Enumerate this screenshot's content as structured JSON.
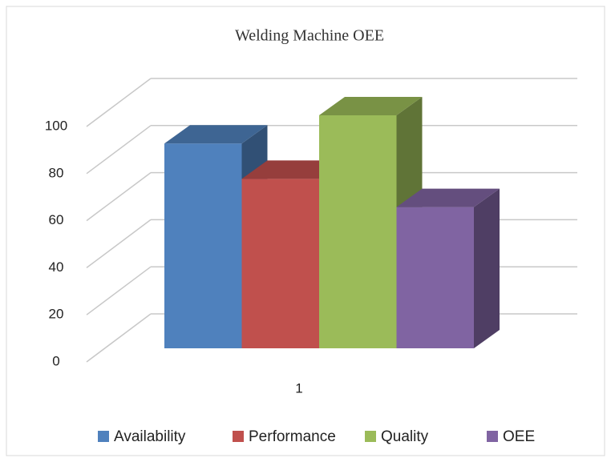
{
  "chart_data": {
    "type": "bar3d",
    "title": "Welding Machine OEE",
    "categories": [
      "1"
    ],
    "series": [
      {
        "name": "Availability",
        "color": "#4f81bd",
        "values": [
          87
        ]
      },
      {
        "name": "Performance",
        "color": "#c0504d",
        "values": [
          72
        ]
      },
      {
        "name": "Quality",
        "color": "#9bbb59",
        "values": [
          99
        ]
      },
      {
        "name": "OEE",
        "color": "#8064a2",
        "values": [
          60
        ]
      }
    ],
    "ylim": [
      0,
      100
    ],
    "yticks": [
      0,
      20,
      40,
      60,
      80,
      100
    ],
    "grid": true,
    "legend": "bottom"
  }
}
